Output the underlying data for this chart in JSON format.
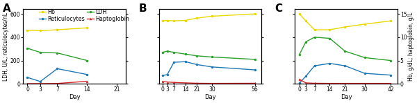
{
  "panels": [
    {
      "label": "A",
      "days": [
        0,
        3,
        7,
        14
      ],
      "xticks": [
        0,
        3,
        7,
        14,
        21
      ],
      "xlim": [
        -1,
        23
      ],
      "hb": [
        11.5,
        11.4,
        11.6,
        12.0
      ],
      "ldh": [
        305,
        270,
        265,
        200
      ],
      "retic": [
        55,
        20,
        130,
        80
      ],
      "hapto": [
        0.05,
        0.05,
        0.08,
        0.55
      ],
      "legend": true
    },
    {
      "label": "B",
      "days": [
        0,
        3,
        7,
        14,
        21,
        30,
        56
      ],
      "xticks": [
        0,
        3,
        7,
        14,
        21,
        30,
        56
      ],
      "xlim": [
        -2,
        60
      ],
      "hb": [
        13.5,
        13.6,
        13.5,
        13.6,
        14.1,
        14.5,
        15.0
      ],
      "ldh": [
        270,
        280,
        270,
        255,
        240,
        230,
        210
      ],
      "retic": [
        70,
        80,
        185,
        190,
        165,
        145,
        120
      ],
      "hapto": [
        0.5,
        0.4,
        0.3,
        0.2,
        0.12,
        0.1,
        0.12
      ],
      "legend": false
    },
    {
      "label": "C",
      "days": [
        0,
        3,
        7,
        14,
        21,
        30,
        42
      ],
      "xticks": [
        0,
        3,
        7,
        14,
        21,
        30,
        42
      ],
      "xlim": [
        -2,
        45
      ],
      "hb": [
        15.0,
        13.5,
        11.6,
        11.6,
        12.2,
        12.8,
        13.5
      ],
      "ldh": [
        250,
        360,
        400,
        390,
        280,
        225,
        200
      ],
      "retic": [
        5,
        65,
        155,
        175,
        155,
        90,
        75
      ],
      "hapto": [
        1.0,
        0.2,
        0.12,
        0.1,
        0.1,
        0.1,
        0.1
      ],
      "legend": false
    }
  ],
  "colors": {
    "hb": "#e8d800",
    "ldh": "#2ca02c",
    "retic": "#1f77b4",
    "hapto": "#d62728"
  },
  "left_ylim": [
    0,
    640
  ],
  "left_yticks": [
    0,
    200,
    400,
    600
  ],
  "right_ylim": [
    0,
    16
  ],
  "right_yticks": [
    0,
    5,
    10,
    15
  ],
  "left_ylabel": "LDH, U/L; reticulocytes/nL",
  "right_ylabel": "Hb, g/dL; haptoglobin, g/L",
  "xlabel": "Day",
  "markersize": 2.5,
  "linewidth": 1.0,
  "label_fontsize": 6.0,
  "tick_fontsize": 5.5,
  "legend_fontsize": 5.8,
  "panel_label_fontsize": 11
}
